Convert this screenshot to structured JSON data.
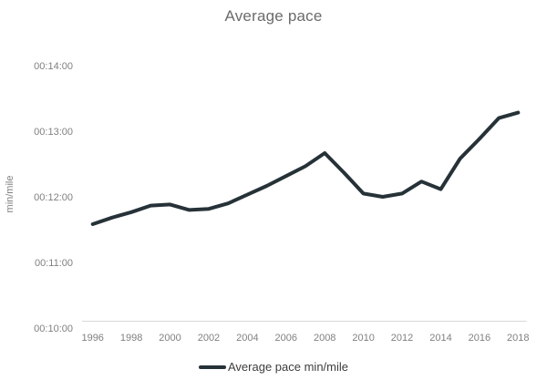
{
  "chart_data": {
    "type": "line",
    "title": "Average pace",
    "ylabel": "min/mile",
    "xlabel": "",
    "x": [
      1996,
      1997,
      1998,
      1999,
      2000,
      2001,
      2002,
      2003,
      2004,
      2005,
      2006,
      2007,
      2008,
      2009,
      2010,
      2011,
      2012,
      2013,
      2014,
      2015,
      2016,
      2017,
      2018
    ],
    "values": [
      "11:35",
      "11:41",
      "11:46",
      "11:52",
      "11:53",
      "11:48",
      "11:49",
      "11:54",
      "12:02",
      "12:10",
      "12:19",
      "12:28",
      "12:40",
      "12:22",
      "12:03",
      "12:00",
      "12:03",
      "12:14",
      "12:07",
      "12:35",
      "12:53",
      "13:12",
      "13:17"
    ],
    "values_unit": "min:sec per mile",
    "x_tick_labels": [
      "1996",
      "1998",
      "2000",
      "2002",
      "2004",
      "2006",
      "2008",
      "2010",
      "2012",
      "2014",
      "2016",
      "2018"
    ],
    "y_tick_labels": [
      "00:10:00",
      "00:11:00",
      "00:12:00",
      "00:13:00",
      "00:14:00"
    ],
    "ylim": [
      "00:10:00",
      "00:14:00"
    ],
    "grid": false,
    "legend": {
      "position": "bottom",
      "label": "Average pace min/mile"
    },
    "colors": {
      "line": "#263238",
      "title_text": "#6b6b6b",
      "axis_text": "#808080",
      "legend_text": "#3d3d3d",
      "axis_line": "#d9d9d9"
    }
  }
}
